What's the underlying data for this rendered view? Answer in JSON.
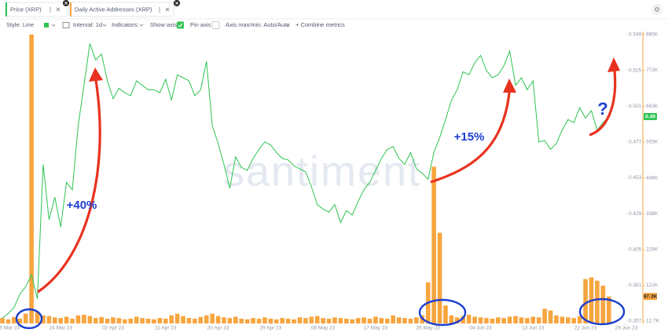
{
  "tabs": [
    "Price (XRP)",
    "Daily Active Addresses (XRP)"
  ],
  "toolbar": [
    "Style: Line",
    "Interval: 1d",
    "Indicators:",
    "Show axis",
    "Pin axis",
    "Axis max/min: Auto/Auto",
    "+ Combine metrics"
  ],
  "chart_data": {
    "type": "combo",
    "watermark": "santiment",
    "annotations": [
      "+40%",
      "+15%",
      "?"
    ],
    "x": [
      "2023-03-14",
      "2023-03-15",
      "2023-03-16",
      "2023-03-17",
      "2023-03-18",
      "2023-03-19",
      "2023-03-20",
      "2023-03-21",
      "2023-03-22",
      "2023-03-23",
      "2023-03-24",
      "2023-03-25",
      "2023-03-26",
      "2023-03-27",
      "2023-03-28",
      "2023-03-29",
      "2023-03-30",
      "2023-03-31",
      "2023-04-01",
      "2023-04-02",
      "2023-04-03",
      "2023-04-04",
      "2023-04-05",
      "2023-04-06",
      "2023-04-07",
      "2023-04-08",
      "2023-04-09",
      "2023-04-10",
      "2023-04-11",
      "2023-04-12",
      "2023-04-13",
      "2023-04-14",
      "2023-04-15",
      "2023-04-16",
      "2023-04-17",
      "2023-04-18",
      "2023-04-19",
      "2023-04-20",
      "2023-04-21",
      "2023-04-22",
      "2023-04-23",
      "2023-04-24",
      "2023-04-25",
      "2023-04-26",
      "2023-04-27",
      "2023-04-28",
      "2023-04-29",
      "2023-04-30",
      "2023-05-01",
      "2023-05-02",
      "2023-05-03",
      "2023-05-04",
      "2023-05-05",
      "2023-05-06",
      "2023-05-07",
      "2023-05-08",
      "2023-05-09",
      "2023-05-10",
      "2023-05-11",
      "2023-05-12",
      "2023-05-13",
      "2023-05-14",
      "2023-05-15",
      "2023-05-16",
      "2023-05-17",
      "2023-05-18",
      "2023-05-19",
      "2023-05-20",
      "2023-05-21",
      "2023-05-22",
      "2023-05-23",
      "2023-05-24",
      "2023-05-25",
      "2023-05-26",
      "2023-05-27",
      "2023-05-28",
      "2023-05-29",
      "2023-05-30",
      "2023-05-31",
      "2023-06-01",
      "2023-06-02",
      "2023-06-03",
      "2023-06-04",
      "2023-06-05",
      "2023-06-06",
      "2023-06-07",
      "2023-06-08",
      "2023-06-09",
      "2023-06-10",
      "2023-06-11",
      "2023-06-12",
      "2023-06-13",
      "2023-06-14",
      "2023-06-15",
      "2023-06-16",
      "2023-06-17",
      "2023-06-18",
      "2023-06-19",
      "2023-06-20",
      "2023-06-21",
      "2023-06-22",
      "2023-06-23",
      "2023-06-24",
      "2023-06-25",
      "2023-06-26"
    ],
    "series": [
      {
        "name": "Price (XRP)",
        "type": "line",
        "color": "#2fc452",
        "axis": "y",
        "last_label": "0.49",
        "values": [
          0.359,
          0.362,
          0.366,
          0.375,
          0.38,
          0.388,
          0.372,
          0.462,
          0.425,
          0.44,
          0.42,
          0.45,
          0.445,
          0.488,
          0.515,
          0.543,
          0.532,
          0.536,
          0.518,
          0.506,
          0.513,
          0.51,
          0.508,
          0.518,
          0.515,
          0.512,
          0.512,
          0.51,
          0.519,
          0.505,
          0.522,
          0.52,
          0.518,
          0.508,
          0.512,
          0.531,
          0.488,
          0.476,
          0.462,
          0.446,
          0.467,
          0.46,
          0.458,
          0.466,
          0.472,
          0.477,
          0.475,
          0.47,
          0.466,
          0.465,
          0.461,
          0.459,
          0.457,
          0.447,
          0.435,
          0.432,
          0.43,
          0.435,
          0.423,
          0.431,
          0.428,
          0.437,
          0.445,
          0.45,
          0.458,
          0.466,
          0.472,
          0.474,
          0.466,
          0.462,
          0.47,
          0.459,
          0.456,
          0.452,
          0.47,
          0.48,
          0.492,
          0.505,
          0.512,
          0.524,
          0.522,
          0.53,
          0.535,
          0.525,
          0.52,
          0.522,
          0.528,
          0.538,
          0.515,
          0.52,
          0.512,
          0.518,
          0.477,
          0.478,
          0.472,
          0.476,
          0.485,
          0.492,
          0.49,
          0.5,
          0.493,
          0.498,
          0.485,
          0.49,
          0.494
        ]
      },
      {
        "name": "Daily Active Addresses (XRP)",
        "type": "bar",
        "color": "#f7a53f",
        "axis": "y2",
        "last_label": "87.3K",
        "values": [
          22000,
          18000,
          25000,
          20000,
          35000,
          880000,
          40000,
          30000,
          28000,
          24000,
          22000,
          26000,
          20000,
          30000,
          32000,
          28000,
          22000,
          25000,
          20000,
          24000,
          22000,
          18000,
          20000,
          26000,
          22000,
          20000,
          18000,
          22000,
          20000,
          30000,
          35000,
          28000,
          22000,
          20000,
          25000,
          30000,
          35000,
          28000,
          24000,
          22000,
          26000,
          20000,
          18000,
          22000,
          20000,
          24000,
          20000,
          18000,
          22000,
          20000,
          18000,
          24000,
          22000,
          26000,
          28000,
          22000,
          20000,
          24000,
          22000,
          20000,
          18000,
          22000,
          24000,
          20000,
          26000,
          22000,
          20000,
          30000,
          24000,
          22000,
          20000,
          24000,
          30000,
          130000,
          480000,
          280000,
          60000,
          30000,
          24000,
          28000,
          32000,
          26000,
          24000,
          22000,
          20000,
          24000,
          22000,
          26000,
          28000,
          24000,
          22000,
          26000,
          24000,
          50000,
          45000,
          30000,
          26000,
          24000,
          22000,
          28000,
          140000,
          145000,
          135000,
          120000,
          87300
        ]
      }
    ],
    "xlim": [
      "2023-03-14",
      "2023-06-29"
    ],
    "xticks": [
      {
        "value": "2023-03-15",
        "label": "15 Mar 23"
      },
      {
        "value": "2023-03-24",
        "label": "24 Mar 23"
      },
      {
        "value": "2023-04-02",
        "label": "02 Apr 23"
      },
      {
        "value": "2023-04-11",
        "label": "11 Apr 23"
      },
      {
        "value": "2023-04-20",
        "label": "20 Apr 23"
      },
      {
        "value": "2023-04-29",
        "label": "29 Apr 23"
      },
      {
        "value": "2023-05-08",
        "label": "08 May 23"
      },
      {
        "value": "2023-05-17",
        "label": "17 May 23"
      },
      {
        "value": "2023-05-26",
        "label": "26 May 23"
      },
      {
        "value": "2023-06-04",
        "label": "04 Jun 23"
      },
      {
        "value": "2023-06-13",
        "label": "13 Jun 23"
      },
      {
        "value": "2023-06-22",
        "label": "22 Jun 23"
      },
      {
        "value": "2023-06-29",
        "label": "29 Jun 23"
      }
    ],
    "ylim": [
      0.3554,
      0.549
    ],
    "yticks": [
      0.549,
      0.525,
      0.501,
      0.477,
      0.453,
      0.429,
      0.405,
      0.381,
      0.357
    ],
    "y2lim": [
      5600,
      880000
    ],
    "y2ticks": [
      {
        "value": 880000,
        "label": "880K"
      },
      {
        "value": 772000,
        "label": "772K"
      },
      {
        "value": 663000,
        "label": "663K"
      },
      {
        "value": 555000,
        "label": "555K"
      },
      {
        "value": 446000,
        "label": "446K"
      },
      {
        "value": 338000,
        "label": "338K"
      },
      {
        "value": 229000,
        "label": "229K"
      },
      {
        "value": 121000,
        "label": "121K"
      },
      {
        "value": 12700,
        "label": "12.7K"
      }
    ],
    "grid": false
  }
}
